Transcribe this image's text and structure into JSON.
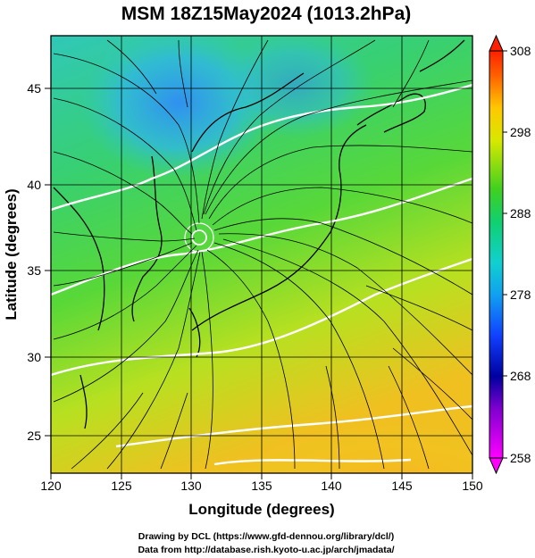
{
  "title": "MSM 18Z15May2024 (1013.2hPa)",
  "x_axis": {
    "label": "Longitude (degrees)",
    "ticks": [
      120,
      125,
      130,
      135,
      140,
      145,
      150
    ],
    "range": [
      120,
      150
    ]
  },
  "y_axis": {
    "label": "Latitude  (degrees)",
    "ticks": [
      25,
      30,
      35,
      40,
      45
    ],
    "range": [
      22.6,
      47.6
    ]
  },
  "colorbar": {
    "ticks": [
      258,
      268,
      278,
      288,
      298,
      308
    ],
    "range": [
      258,
      308
    ],
    "colors": [
      "#ff00ff",
      "#0000a0",
      "#1060ff",
      "#10c8e8",
      "#10d070",
      "#30d030",
      "#d8e800",
      "#ffd000",
      "#ff8000",
      "#ff2000"
    ]
  },
  "map": {
    "center_low": {
      "lon": 130.6,
      "lat": 36.8
    },
    "field": "temperature (K) with streamlines"
  },
  "credits": [
    "Drawing by DCL (https://www.gfd-dennou.org/library/dcl/)",
    "Data from http://database.rish.kyoto-u.ac.jp/arch/jmadata/"
  ]
}
